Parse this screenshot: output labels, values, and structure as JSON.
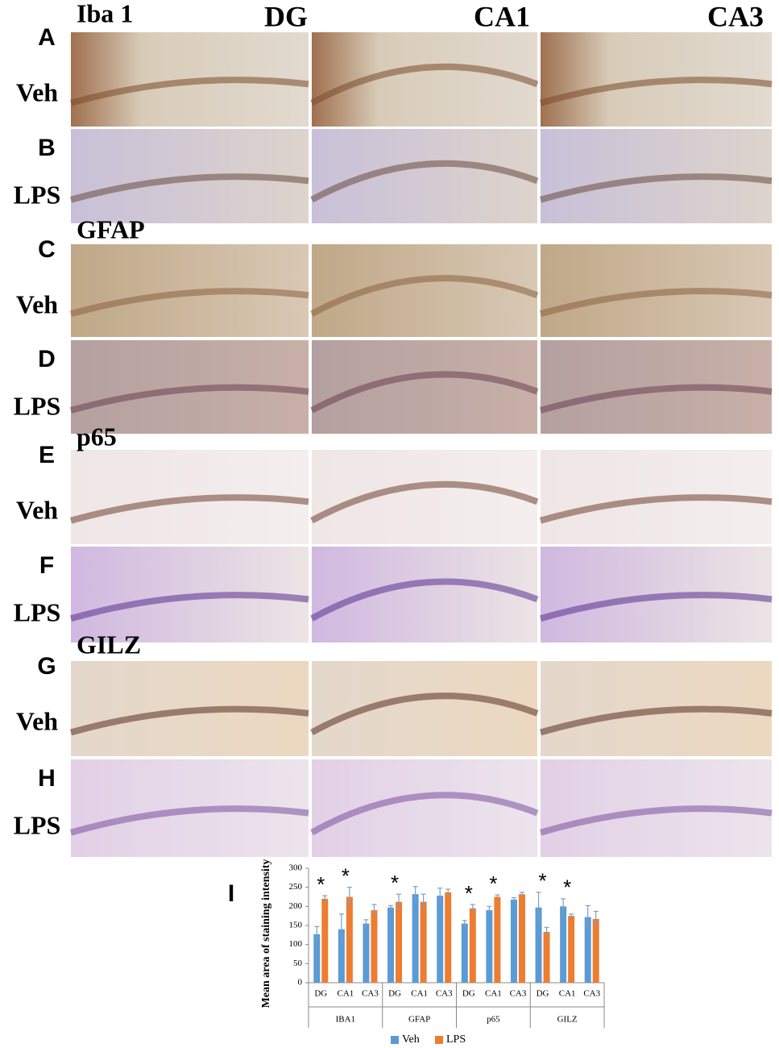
{
  "figure": {
    "column_headers": [
      "DG",
      "CA1",
      "CA3"
    ],
    "markers": [
      "Iba 1",
      "GFAP",
      "p65",
      "GILZ"
    ],
    "rows": [
      {
        "letter": "A",
        "condition": "Veh"
      },
      {
        "letter": "B",
        "condition": "LPS"
      },
      {
        "letter": "C",
        "condition": "Veh"
      },
      {
        "letter": "D",
        "condition": "LPS"
      },
      {
        "letter": "E",
        "condition": "Veh"
      },
      {
        "letter": "F",
        "condition": "LPS"
      },
      {
        "letter": "G",
        "condition": "Veh"
      },
      {
        "letter": "H",
        "condition": "LPS"
      }
    ],
    "chart_letter": "I"
  },
  "chart_data": {
    "type": "bar",
    "y_label": "Mean area of staining intensity",
    "categories": [
      "DG",
      "CA1",
      "CA3",
      "DG",
      "CA1",
      "CA3",
      "DG",
      "CA1",
      "CA3",
      "DG",
      "CA1",
      "CA3"
    ],
    "groups": [
      "IBA1",
      "GFAP",
      "p65",
      "GILZ"
    ],
    "series": [
      {
        "name": "Veh",
        "color": "#5b9bd5",
        "values": [
          127,
          140,
          155,
          197,
          232,
          228,
          155,
          190,
          218,
          197,
          200,
          172
        ],
        "errors": [
          20,
          40,
          10,
          5,
          20,
          20,
          8,
          10,
          5,
          40,
          20,
          30
        ]
      },
      {
        "name": "LPS",
        "color": "#ed7d31",
        "values": [
          220,
          225,
          190,
          212,
          212,
          237,
          195,
          225,
          232,
          133,
          175,
          167
        ],
        "errors": [
          8,
          25,
          15,
          20,
          20,
          8,
          10,
          5,
          5,
          12,
          5,
          20
        ]
      }
    ],
    "significance": [
      "*",
      "*",
      null,
      "*",
      null,
      null,
      "*",
      "*",
      null,
      "*",
      "*",
      null
    ],
    "ylim": [
      0,
      300
    ],
    "yticks": [
      0,
      50,
      100,
      150,
      200,
      250,
      300
    ],
    "grid": false,
    "legend": "bottom"
  }
}
